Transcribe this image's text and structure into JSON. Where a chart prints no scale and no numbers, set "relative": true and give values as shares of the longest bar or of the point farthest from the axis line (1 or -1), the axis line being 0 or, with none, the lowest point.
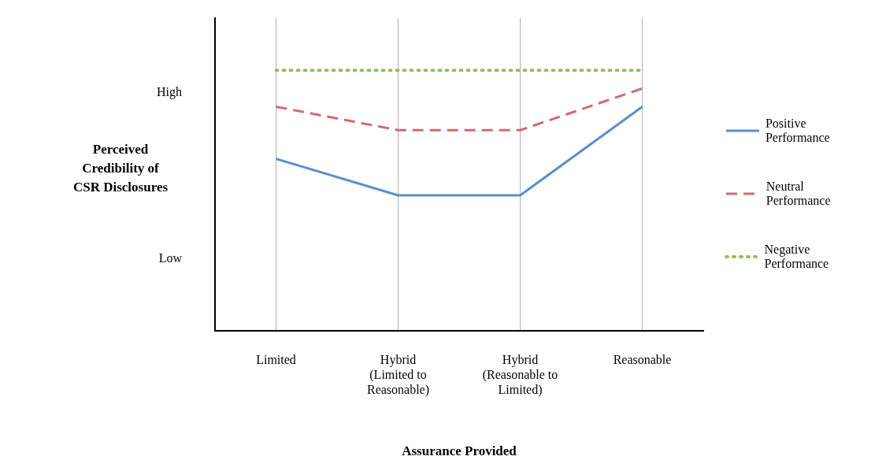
{
  "chart_data": {
    "type": "line",
    "xlabel": "Assurance Provided",
    "ylabel": "Perceived\nCredibility of\nCSR Disclosures",
    "categories": [
      "Limited",
      "Hybrid\n(Limited to\nReasonable)",
      "Hybrid\n(Reasonable to\nLimited)",
      "Reasonable"
    ],
    "relative": true,
    "annotations": [
      "High",
      "Low"
    ],
    "series": [
      {
        "name": "Positive Performance",
        "color": "#5b8fc9",
        "values": [
          0.66,
          0.52,
          0.52,
          0.86
        ],
        "line_style": "solid"
      },
      {
        "name": "Neutral Performance",
        "color": "#d46a6a",
        "values": [
          0.86,
          0.77,
          0.77,
          0.93
        ],
        "line_style": "dashed"
      },
      {
        "name": "Negative Performance",
        "color": "#9bbb59",
        "values": [
          1,
          1,
          1,
          1
        ],
        "line_style": "dotted"
      }
    ],
    "grid": "x",
    "legend": "right"
  }
}
